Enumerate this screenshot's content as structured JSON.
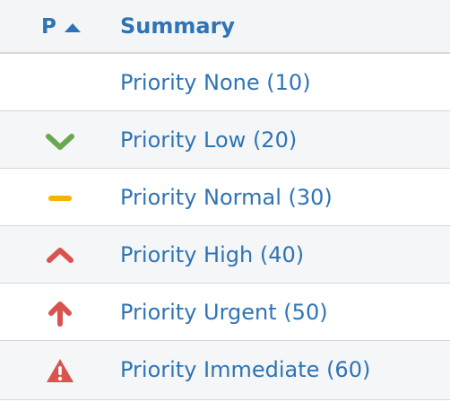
{
  "table": {
    "header": {
      "p_label": "P",
      "summary_label": "Summary",
      "sort_direction": "ascending"
    },
    "rows": [
      {
        "priority_icon": "none",
        "summary": "Priority None (10)"
      },
      {
        "priority_icon": "chevron-down-icon",
        "icon_color": "#6aa84f",
        "summary": "Priority Low (20)"
      },
      {
        "priority_icon": "minus-icon",
        "icon_color": "#f4b400",
        "summary": "Priority Normal (30)"
      },
      {
        "priority_icon": "chevron-up-icon",
        "icon_color": "#d9534f",
        "summary": "Priority High (40)"
      },
      {
        "priority_icon": "arrow-up-icon",
        "icon_color": "#d9534f",
        "summary": "Priority Urgent (50)"
      },
      {
        "priority_icon": "warning-triangle-icon",
        "icon_color": "#d9534f",
        "summary": "Priority Immediate (60)"
      }
    ]
  }
}
